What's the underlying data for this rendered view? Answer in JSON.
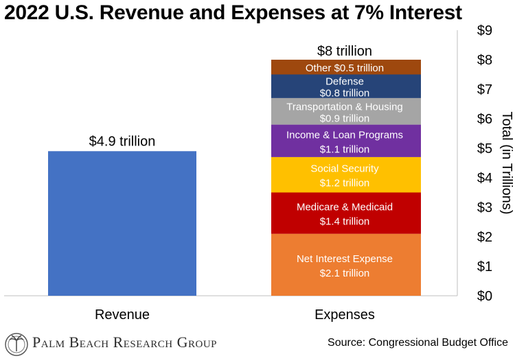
{
  "chart_data": {
    "type": "bar",
    "stacked": true,
    "title": "2022 U.S. Revenue and Expenses at 7% Interest",
    "categories": [
      "Revenue",
      "Expenses"
    ],
    "ylabel": "Total (in Trillions)",
    "ylim": [
      0,
      9
    ],
    "yticks": [
      "$0",
      "$1",
      "$2",
      "$3",
      "$4",
      "$5",
      "$6",
      "$7",
      "$8",
      "$9"
    ],
    "axis_side": "right",
    "grid": false,
    "revenue": {
      "value": 4.9,
      "label": "$4.9 trillion",
      "color": "#4472C4"
    },
    "expenses_total_label": "$8 trillion",
    "expenses": [
      {
        "name": "Net Interest Expense",
        "value": 2.1,
        "amount_label": "$2.1 trillion",
        "color": "#ED7D31",
        "text_color": "#ffffff"
      },
      {
        "name": "Medicare & Medicaid",
        "value": 1.4,
        "amount_label": "$1.4 trillion",
        "color": "#C00000",
        "text_color": "#ffffff"
      },
      {
        "name": "Social Security",
        "value": 1.2,
        "amount_label": "$1.2 trillion",
        "color": "#FFC000",
        "text_color": "#ffffff"
      },
      {
        "name": "Income & Loan Programs",
        "value": 1.1,
        "amount_label": "$1.1 trillion",
        "color": "#7030A0",
        "text_color": "#ffffff"
      },
      {
        "name": "Transportation & Housing",
        "value": 0.9,
        "amount_label": "$0.9 trillion",
        "color": "#A5A5A5",
        "text_color": "#ffffff"
      },
      {
        "name": "Defense",
        "value": 0.8,
        "amount_label": "$0.8 trillion",
        "color": "#264478",
        "text_color": "#ffffff"
      },
      {
        "name": "Other",
        "value": 0.5,
        "amount_label": "$0.5 trillion",
        "color": "#9E480E",
        "text_color": "#ffffff"
      }
    ]
  },
  "footer": {
    "brand": "Palm Beach Research Group",
    "source": "Source: Congressional Budget Office"
  }
}
